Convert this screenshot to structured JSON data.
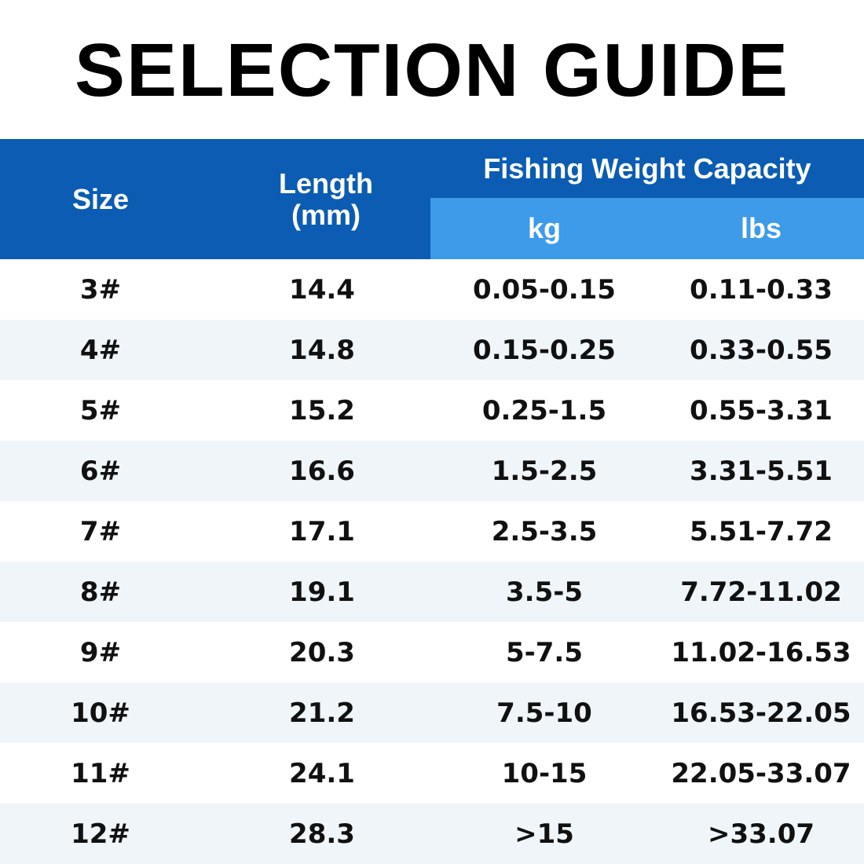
{
  "header": {
    "title": "SELECTION GUIDE"
  },
  "table": {
    "columns": {
      "size": "Size",
      "length": "Length (mm)",
      "capacity": "Fishing Weight Capacity",
      "kg": "kg",
      "lbs": "lbs"
    },
    "rows": [
      [
        "3#",
        "14.4",
        "0.05-0.15",
        "0.11-0.33"
      ],
      [
        "4#",
        "14.8",
        "0.15-0.25",
        "0.33-0.55"
      ],
      [
        "5#",
        "15.2",
        "0.25-1.5",
        "0.55-3.31"
      ],
      [
        "6#",
        "16.6",
        "1.5-2.5",
        "3.31-5.51"
      ],
      [
        "7#",
        "17.1",
        "2.5-3.5",
        "5.51-7.72"
      ],
      [
        "8#",
        "19.1",
        "3.5-5",
        "7.72-11.02"
      ],
      [
        "9#",
        "20.3",
        "5-7.5",
        "11.02-16.53"
      ],
      [
        "10#",
        "21.2",
        "7.5-10",
        "16.53-22.05"
      ],
      [
        "11#",
        "24.1",
        "10-15",
        "22.05-33.07"
      ],
      [
        "12#",
        "28.3",
        ">15",
        ">33.07"
      ]
    ]
  }
}
